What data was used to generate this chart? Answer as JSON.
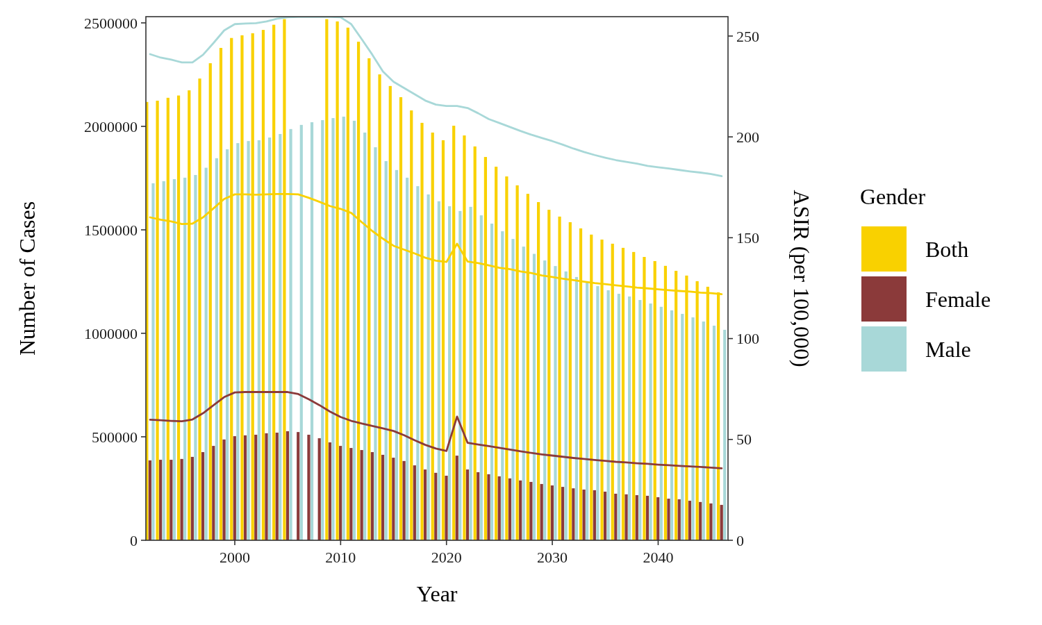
{
  "chart_data": {
    "type": "bar",
    "xlabel": "Year",
    "ylabel": "Number of Cases",
    "y2label": "ASIR (per 100,000)",
    "legend_title": "Gender",
    "legend": "right",
    "x": [
      1992,
      1993,
      1994,
      1995,
      1996,
      1997,
      1998,
      1999,
      2000,
      2001,
      2002,
      2003,
      2004,
      2005,
      2006,
      2007,
      2008,
      2009,
      2010,
      2011,
      2012,
      2013,
      2014,
      2015,
      2016,
      2017,
      2018,
      2019,
      2020,
      2021,
      2022,
      2023,
      2024,
      2025,
      2026,
      2027,
      2028,
      2029,
      2030,
      2031,
      2032,
      2033,
      2034,
      2035,
      2036,
      2037,
      2038,
      2039,
      2040,
      2041,
      2042,
      2043,
      2044,
      2045,
      2046
    ],
    "xlim": [
      1991.6,
      2046.6
    ],
    "xticks": [
      2000,
      2010,
      2020,
      2030,
      2040
    ],
    "ylim": [
      0,
      2530000
    ],
    "yticks": [
      0,
      500000,
      1000000,
      1500000,
      2000000,
      2500000
    ],
    "y2lim": [
      0,
      259.6
    ],
    "y2ticks": [
      0,
      50,
      100,
      150,
      200,
      250
    ],
    "series": [
      {
        "name": "Both",
        "color": "#f9d100",
        "values": [
          2118000,
          2124000,
          2138000,
          2149000,
          2174000,
          2231000,
          2305000,
          2379000,
          2427000,
          2440000,
          2450000,
          2466000,
          2491000,
          2518000,
          null,
          null,
          null,
          2518000,
          2507000,
          2477000,
          2409000,
          2329000,
          2251000,
          2195000,
          2141000,
          2077000,
          2017000,
          1970000,
          1933000,
          2003000,
          1956000,
          1903000,
          1852000,
          1805000,
          1758000,
          1715000,
          1674000,
          1634000,
          1597000,
          1564000,
          1537000,
          1507000,
          1477000,
          1453000,
          1433000,
          1413000,
          1393000,
          1369000,
          1349000,
          1326000,
          1302000,
          1279000,
          1252000,
          1225000,
          1198000
        ]
      },
      {
        "name": "Female",
        "color": "#8b3a3a",
        "values": [
          386000,
          389000,
          389000,
          393000,
          403000,
          426000,
          456000,
          487000,
          503000,
          507000,
          510000,
          517000,
          520000,
          527000,
          523000,
          510000,
          493000,
          473000,
          456000,
          446000,
          436000,
          426000,
          413000,
          399000,
          383000,
          362000,
          342000,
          326000,
          312000,
          409000,
          342000,
          329000,
          319000,
          309000,
          299000,
          289000,
          282000,
          272000,
          265000,
          258000,
          251000,
          245000,
          242000,
          235000,
          225000,
          222000,
          218000,
          215000,
          208000,
          201000,
          198000,
          191000,
          185000,
          178000,
          171000
        ]
      },
      {
        "name": "Male",
        "color": "#a8d8d8",
        "values": [
          1725000,
          1735000,
          1745000,
          1752000,
          1765000,
          1800000,
          1846000,
          1889000,
          1919000,
          1929000,
          1933000,
          1946000,
          1963000,
          1987000,
          2007000,
          2020000,
          2030000,
          2040000,
          2047000,
          2027000,
          1970000,
          1899000,
          1832000,
          1789000,
          1752000,
          1711000,
          1671000,
          1638000,
          1614000,
          1591000,
          1611000,
          1570000,
          1530000,
          1493000,
          1456000,
          1419000,
          1384000,
          1352000,
          1325000,
          1299000,
          1272000,
          1250000,
          1228000,
          1208000,
          1191000,
          1178000,
          1161000,
          1144000,
          1128000,
          1111000,
          1094000,
          1077000,
          1057000,
          1037000,
          1017000
        ]
      },
      {
        "type": "line",
        "axis": "y2",
        "color": "#f9d100",
        "values": [
          160.1,
          158.9,
          158.1,
          156.8,
          157.0,
          160.1,
          164.6,
          169.2,
          171.5,
          171.5,
          171.3,
          171.5,
          171.7,
          171.7,
          171.5,
          169.8,
          167.8,
          165.7,
          164.3,
          162.3,
          157.7,
          153.3,
          149.5,
          146.0,
          144.1,
          142.2,
          140.1,
          138.6,
          138.0,
          147.0,
          138.2,
          137.4,
          136.3,
          135.1,
          134.4,
          133.3,
          132.5,
          131.3,
          130.5,
          129.7,
          129.0,
          128.2,
          127.5,
          127.0,
          126.4,
          125.9,
          125.3,
          124.9,
          124.4,
          124.0,
          123.6,
          123.3,
          122.8,
          122.5,
          122.0
        ]
      },
      {
        "type": "line",
        "axis": "y2",
        "color": "#8b3a3a",
        "values": [
          59.8,
          59.5,
          59.2,
          59.0,
          59.9,
          63.0,
          67.0,
          71.0,
          73.3,
          73.5,
          73.5,
          73.5,
          73.5,
          73.5,
          72.5,
          69.9,
          67.0,
          63.8,
          61.1,
          59.2,
          57.9,
          56.7,
          55.5,
          54.2,
          52.1,
          49.6,
          47.3,
          45.5,
          44.3,
          61.3,
          48.3,
          47.5,
          46.7,
          45.8,
          45.0,
          44.1,
          43.3,
          42.6,
          42.0,
          41.4,
          40.8,
          40.3,
          39.8,
          39.4,
          38.9,
          38.6,
          38.2,
          37.9,
          37.5,
          37.2,
          36.9,
          36.6,
          36.4,
          36.0,
          35.7
        ]
      },
      {
        "type": "line",
        "axis": "y2",
        "color": "#a8d8d8",
        "values": [
          241.0,
          239.3,
          238.3,
          236.9,
          236.9,
          240.7,
          246.6,
          252.8,
          255.9,
          256.2,
          256.4,
          257.2,
          258.6,
          259.3,
          259.5,
          259.5,
          259.5,
          259.5,
          259.3,
          255.9,
          248.4,
          240.7,
          232.4,
          227.3,
          224.2,
          221.1,
          218.0,
          216.0,
          215.3,
          215.3,
          214.3,
          211.7,
          208.8,
          206.9,
          204.9,
          202.9,
          201.1,
          199.5,
          197.9,
          196.1,
          194.2,
          192.5,
          191.0,
          189.7,
          188.5,
          187.6,
          186.7,
          185.6,
          184.9,
          184.3,
          183.6,
          182.9,
          182.3,
          181.6,
          180.5
        ]
      }
    ]
  }
}
